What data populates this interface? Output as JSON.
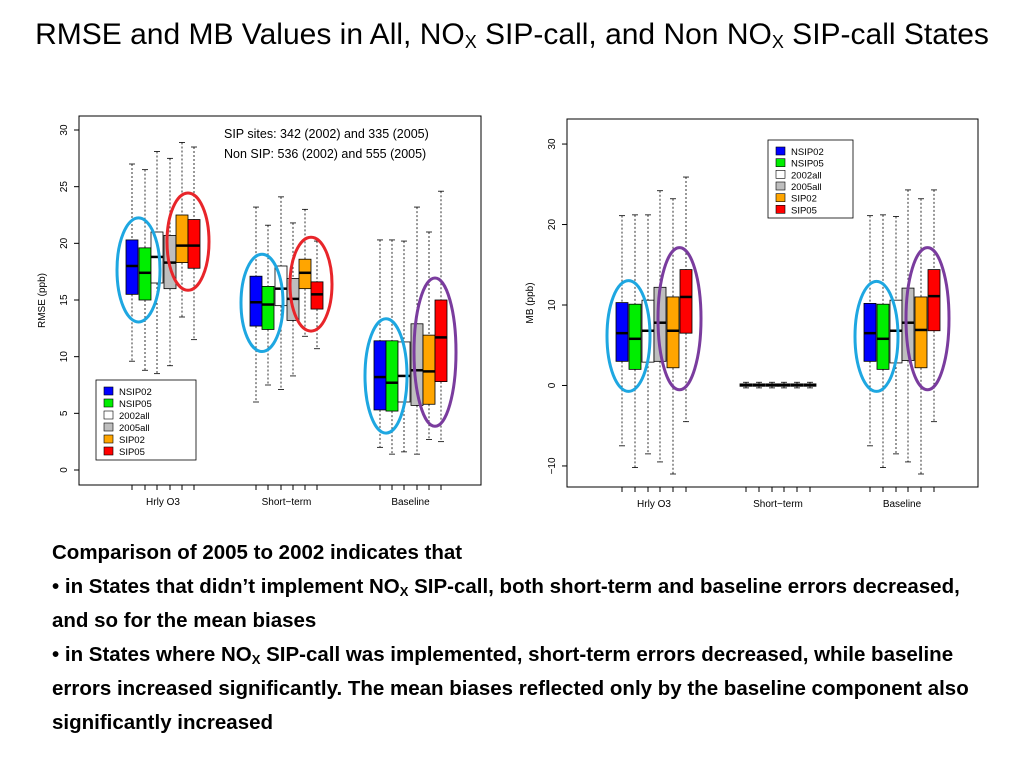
{
  "slide": {
    "title_part1": "RMSE and MB Values in All, NO",
    "title_sub1": "X",
    "title_part2": " SIP-call, and Non NO",
    "title_sub2": "X",
    "title_part3": " SIP-call States"
  },
  "notes": {
    "heading": "Comparison of 2005 to 2002 indicates that",
    "b1_part1": "• in States that didn’t implement NO",
    "b1_sub": "X",
    "b1_part2": " SIP-call, both short-term and baseline errors decreased, and so for the mean biases",
    "b2_part1": "• in States where NO",
    "b2_sub": "X",
    "b2_part2": " SIP-call was implemented, short-term errors decreased, while baseline errors increased significantly. The mean biases reflected only by the baseline component also significantly increased"
  },
  "colors": {
    "NSIP02": "#0000ff",
    "NSIP05": "#00ee00",
    "2002all": "#ffffff",
    "2005all": "#bebebe",
    "SIP02": "#ffa500",
    "SIP05": "#ff0000",
    "highlight_blue": "#1ea7e1",
    "highlight_red": "#e8252a",
    "highlight_purple": "#7a3c9e"
  },
  "chart_data": [
    {
      "type": "box",
      "ylabel": "RMSE (ppb)",
      "ylim": [
        0,
        30
      ],
      "yticks": [
        "0",
        "5",
        "10",
        "15",
        "20",
        "25",
        "30"
      ],
      "categories": [
        "Hrly O3",
        "Short−term",
        "Baseline"
      ],
      "legend": [
        "NSIP02",
        "NSIP05",
        "2002all",
        "2005all",
        "SIP02",
        "SIP05"
      ],
      "legend_position": "bottom-left",
      "annotation": [
        "SIP sites: 342 (2002) and 335 (2005)",
        "Non SIP:  536 (2002) and 555 (2005)"
      ],
      "series": [
        {
          "name": "NSIP02",
          "boxes": [
            [
              9.6,
              15.5,
              18.0,
              20.3,
              27.0
            ],
            [
              6.0,
              12.7,
              14.8,
              17.1,
              23.2
            ],
            [
              2.0,
              5.3,
              8.2,
              11.4,
              20.3
            ]
          ]
        },
        {
          "name": "NSIP05",
          "boxes": [
            [
              8.8,
              15.0,
              17.4,
              19.6,
              26.5
            ],
            [
              7.5,
              12.4,
              14.6,
              16.2,
              21.6
            ],
            [
              1.4,
              5.2,
              7.7,
              11.4,
              20.3
            ]
          ]
        },
        {
          "name": "2002all",
          "boxes": [
            [
              8.5,
              16.5,
              18.8,
              21.0,
              28.1
            ],
            [
              7.1,
              14.5,
              16.0,
              18.0,
              24.1
            ],
            [
              1.6,
              6.0,
              8.3,
              11.3,
              20.2
            ]
          ]
        },
        {
          "name": "2005all",
          "boxes": [
            [
              9.2,
              16.0,
              18.3,
              20.7,
              27.5
            ],
            [
              8.3,
              13.2,
              15.1,
              16.9,
              21.8
            ],
            [
              1.4,
              5.7,
              8.8,
              12.9,
              23.2
            ]
          ]
        },
        {
          "name": "SIP02",
          "boxes": [
            [
              13.5,
              18.3,
              19.8,
              22.5,
              28.9
            ],
            [
              11.8,
              16.0,
              17.4,
              18.6,
              23.0
            ],
            [
              2.7,
              5.8,
              8.7,
              11.9,
              21.0
            ]
          ]
        },
        {
          "name": "SIP05",
          "boxes": [
            [
              11.5,
              17.8,
              19.8,
              22.1,
              28.5
            ],
            [
              10.7,
              14.2,
              15.5,
              16.6,
              20.2
            ],
            [
              2.5,
              7.8,
              11.7,
              15.0,
              24.6
            ]
          ]
        }
      ],
      "highlights": [
        {
          "group": 0,
          "members": [
            0,
            1
          ],
          "color": "highlight_blue"
        },
        {
          "group": 0,
          "members": [
            4,
            5
          ],
          "color": "highlight_red"
        },
        {
          "group": 1,
          "members": [
            0,
            1
          ],
          "color": "highlight_blue"
        },
        {
          "group": 1,
          "members": [
            4,
            5
          ],
          "color": "highlight_red"
        },
        {
          "group": 2,
          "members": [
            0,
            1
          ],
          "color": "highlight_blue"
        },
        {
          "group": 2,
          "members": [
            4,
            5
          ],
          "color": "highlight_purple"
        }
      ]
    },
    {
      "type": "box",
      "ylabel": "MB (ppb)",
      "ylim": [
        -11,
        31
      ],
      "yticks": [
        "−10",
        "0",
        "10",
        "20",
        "30"
      ],
      "ytick_values": [
        -10,
        0,
        10,
        20,
        30
      ],
      "categories": [
        "Hrly O3",
        "Short−term",
        "Baseline"
      ],
      "legend": [
        "NSIP02",
        "NSIP05",
        "2002all",
        "2005all",
        "SIP02",
        "SIP05"
      ],
      "legend_position": "top-right",
      "series": [
        {
          "name": "NSIP02",
          "boxes": [
            [
              -7.5,
              3.0,
              6.5,
              10.3,
              21.1
            ],
            [
              -0.3,
              -0.1,
              0.05,
              0.2,
              0.4
            ],
            [
              -7.5,
              3.0,
              6.5,
              10.2,
              21.1
            ]
          ]
        },
        {
          "name": "NSIP05",
          "boxes": [
            [
              -10.2,
              2.0,
              5.8,
              10.1,
              21.2
            ],
            [
              -0.3,
              -0.1,
              0.05,
              0.2,
              0.4
            ],
            [
              -10.2,
              2.0,
              5.8,
              10.1,
              21.2
            ]
          ]
        },
        {
          "name": "2002all",
          "boxes": [
            [
              -8.5,
              2.9,
              6.8,
              10.6,
              21.2
            ],
            [
              -0.3,
              -0.1,
              0.05,
              0.2,
              0.4
            ],
            [
              -8.5,
              2.8,
              6.8,
              10.6,
              21.0
            ]
          ]
        },
        {
          "name": "2005all",
          "boxes": [
            [
              -9.5,
              3.0,
              7.8,
              12.2,
              24.2
            ],
            [
              -0.3,
              -0.1,
              0.05,
              0.2,
              0.4
            ],
            [
              -9.5,
              3.1,
              7.8,
              12.1,
              24.3
            ]
          ]
        },
        {
          "name": "SIP02",
          "boxes": [
            [
              -11.0,
              2.2,
              6.8,
              11.0,
              23.2
            ],
            [
              -0.3,
              -0.1,
              0.05,
              0.2,
              0.4
            ],
            [
              -11.0,
              2.2,
              6.9,
              11.0,
              23.2
            ]
          ]
        },
        {
          "name": "SIP05",
          "boxes": [
            [
              -4.5,
              6.5,
              11.0,
              14.4,
              25.9
            ],
            [
              -0.3,
              -0.1,
              0.05,
              0.2,
              0.4
            ],
            [
              -4.5,
              6.8,
              11.1,
              14.4,
              24.3
            ]
          ]
        }
      ],
      "highlights": [
        {
          "group": 0,
          "members": [
            0,
            1
          ],
          "color": "highlight_blue"
        },
        {
          "group": 0,
          "members": [
            4,
            5
          ],
          "color": "highlight_purple"
        },
        {
          "group": 2,
          "members": [
            0,
            1
          ],
          "color": "highlight_blue"
        },
        {
          "group": 2,
          "members": [
            4,
            5
          ],
          "color": "highlight_purple"
        }
      ]
    }
  ]
}
